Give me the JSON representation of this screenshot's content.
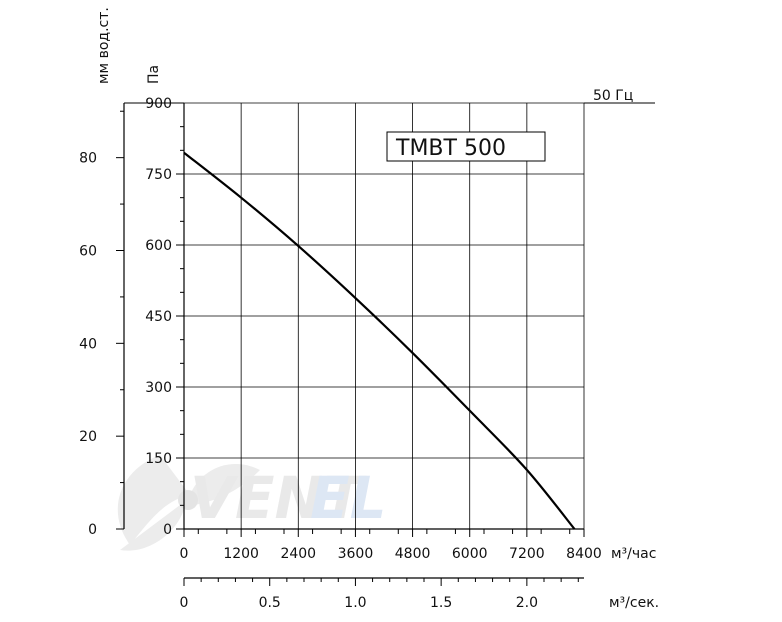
{
  "chart_data": {
    "type": "line",
    "title": "TMBT 500",
    "frequency_label": "50 Гц",
    "series": [
      {
        "x": [
          0,
          1200,
          2400,
          3600,
          4800,
          6000,
          7200,
          8200
        ],
        "y": [
          795,
          700,
          598,
          488,
          372,
          250,
          125,
          0
        ]
      }
    ],
    "axes": {
      "y_pa": {
        "unit": "Па",
        "ticks": [
          900,
          750,
          600,
          450,
          300,
          150,
          0
        ],
        "range": [
          0,
          900
        ]
      },
      "y_mm": {
        "unit": "мм вод.ст.",
        "ticks": [
          80,
          60,
          40,
          20,
          0
        ]
      },
      "x_m3h": {
        "unit": "м³/час",
        "ticks": [
          "0",
          "1200",
          "2400",
          "3600",
          "4800",
          "6000",
          "7200",
          "8400"
        ],
        "range": [
          0,
          8400
        ]
      },
      "x_m3s": {
        "unit": "м³/сек.",
        "ticks": [
          "0",
          "0.5",
          "1.0",
          "1.5",
          "2.0"
        ]
      }
    },
    "grid": true,
    "line_color": "#000000"
  },
  "watermark": {
    "text_dark": "VENT",
    "text_blue": "EL",
    "icon": "fan-blade-icon",
    "color_dark": "#e9e9e9",
    "color_blue": "#dde7f4"
  }
}
